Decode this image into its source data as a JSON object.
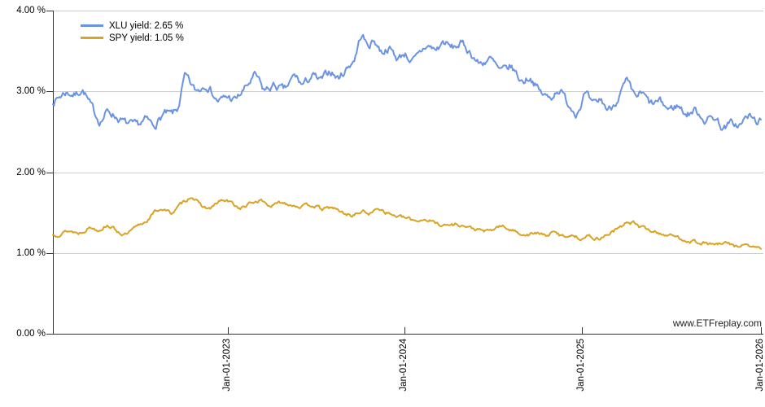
{
  "page": {
    "background": "#ffffff"
  },
  "legend": {
    "items": [
      {
        "id": "xlu",
        "label": "XLU yield: 2.65 %",
        "color": "#6b93e3"
      },
      {
        "id": "spy",
        "label": "SPY yield: 1.05 %",
        "color": "#d9a326"
      }
    ]
  },
  "watermark": {
    "text": "www.ETFreplay.com"
  },
  "chart_data": {
    "type": "line",
    "title": "",
    "xlabel": "",
    "ylabel": "",
    "y_unit": "%",
    "ylim": [
      0,
      4
    ],
    "x_domain": [
      "Jan-01-2022",
      "Jan-01-2026"
    ],
    "grid": "horizontal",
    "legend_position": "top-left",
    "axis_color": "#333333",
    "grid_color": "#cccccc",
    "yticks": [
      {
        "label": "0.00 %",
        "value": 0
      },
      {
        "label": "1.00 %",
        "value": 1
      },
      {
        "label": "2.00 %",
        "value": 2
      },
      {
        "label": "3.00 %",
        "value": 3
      },
      {
        "label": "4.00 %",
        "value": 4
      }
    ],
    "xticks": [
      {
        "label": "Jan-01-2023",
        "pos": 0.2471
      },
      {
        "label": "Jan-01-2024",
        "pos": 0.4966
      },
      {
        "label": "Jan-01-2025",
        "pos": 0.7471
      },
      {
        "label": "Jan-01-2026",
        "pos": 1.0
      }
    ],
    "series": [
      {
        "name": "XLU yield",
        "last_value": 2.65,
        "color": "#6b93e3",
        "stroke_width": 2,
        "seed": 7,
        "jitter": 0.08,
        "points": [
          [
            0,
            2.88
          ],
          [
            0.015,
            3.0
          ],
          [
            0.03,
            2.95
          ],
          [
            0.04,
            3.05
          ],
          [
            0.05,
            2.82
          ],
          [
            0.065,
            2.6
          ],
          [
            0.075,
            2.78
          ],
          [
            0.09,
            2.66
          ],
          [
            0.1,
            2.6
          ],
          [
            0.115,
            2.56
          ],
          [
            0.13,
            2.66
          ],
          [
            0.14,
            2.56
          ],
          [
            0.155,
            2.74
          ],
          [
            0.165,
            2.7
          ],
          [
            0.175,
            2.78
          ],
          [
            0.185,
            3.28
          ],
          [
            0.19,
            3.1
          ],
          [
            0.2,
            2.98
          ],
          [
            0.215,
            3.12
          ],
          [
            0.23,
            2.86
          ],
          [
            0.245,
            2.94
          ],
          [
            0.255,
            2.88
          ],
          [
            0.27,
            3.05
          ],
          [
            0.285,
            3.22
          ],
          [
            0.295,
            2.98
          ],
          [
            0.31,
            3.08
          ],
          [
            0.325,
            3.0
          ],
          [
            0.34,
            3.22
          ],
          [
            0.35,
            3.05
          ],
          [
            0.365,
            3.22
          ],
          [
            0.375,
            3.1
          ],
          [
            0.39,
            3.28
          ],
          [
            0.4,
            3.14
          ],
          [
            0.415,
            3.32
          ],
          [
            0.425,
            3.42
          ],
          [
            0.434,
            3.78
          ],
          [
            0.442,
            3.52
          ],
          [
            0.452,
            3.66
          ],
          [
            0.462,
            3.46
          ],
          [
            0.472,
            3.56
          ],
          [
            0.485,
            3.38
          ],
          [
            0.495,
            3.5
          ],
          [
            0.505,
            3.34
          ],
          [
            0.515,
            3.45
          ],
          [
            0.525,
            3.58
          ],
          [
            0.54,
            3.5
          ],
          [
            0.55,
            3.64
          ],
          [
            0.56,
            3.52
          ],
          [
            0.575,
            3.6
          ],
          [
            0.59,
            3.45
          ],
          [
            0.6,
            3.32
          ],
          [
            0.615,
            3.42
          ],
          [
            0.63,
            3.22
          ],
          [
            0.645,
            3.32
          ],
          [
            0.66,
            3.1
          ],
          [
            0.672,
            3.2
          ],
          [
            0.685,
            2.98
          ],
          [
            0.7,
            2.9
          ],
          [
            0.712,
            3.06
          ],
          [
            0.725,
            2.84
          ],
          [
            0.738,
            2.72
          ],
          [
            0.75,
            3.02
          ],
          [
            0.76,
            2.78
          ],
          [
            0.772,
            2.92
          ],
          [
            0.782,
            2.74
          ],
          [
            0.795,
            2.92
          ],
          [
            0.809,
            3.15
          ],
          [
            0.818,
            2.9
          ],
          [
            0.83,
            2.98
          ],
          [
            0.842,
            2.82
          ],
          [
            0.855,
            2.88
          ],
          [
            0.868,
            2.76
          ],
          [
            0.88,
            2.84
          ],
          [
            0.893,
            2.7
          ],
          [
            0.905,
            2.78
          ],
          [
            0.92,
            2.63
          ],
          [
            0.932,
            2.7
          ],
          [
            0.945,
            2.52
          ],
          [
            0.957,
            2.62
          ],
          [
            0.968,
            2.56
          ],
          [
            0.98,
            2.72
          ],
          [
            0.99,
            2.62
          ],
          [
            1,
            2.65
          ]
        ]
      },
      {
        "name": "SPY yield",
        "last_value": 1.05,
        "color": "#d9a326",
        "stroke_width": 2,
        "seed": 13,
        "jitter": 0.035,
        "points": [
          [
            0,
            1.22
          ],
          [
            0.02,
            1.28
          ],
          [
            0.035,
            1.24
          ],
          [
            0.05,
            1.33
          ],
          [
            0.062,
            1.28
          ],
          [
            0.075,
            1.36
          ],
          [
            0.088,
            1.27
          ],
          [
            0.1,
            1.21
          ],
          [
            0.115,
            1.32
          ],
          [
            0.13,
            1.4
          ],
          [
            0.142,
            1.52
          ],
          [
            0.152,
            1.56
          ],
          [
            0.165,
            1.48
          ],
          [
            0.18,
            1.62
          ],
          [
            0.195,
            1.72
          ],
          [
            0.205,
            1.58
          ],
          [
            0.22,
            1.54
          ],
          [
            0.235,
            1.66
          ],
          [
            0.25,
            1.62
          ],
          [
            0.262,
            1.54
          ],
          [
            0.278,
            1.62
          ],
          [
            0.292,
            1.66
          ],
          [
            0.305,
            1.57
          ],
          [
            0.32,
            1.63
          ],
          [
            0.335,
            1.6
          ],
          [
            0.35,
            1.57
          ],
          [
            0.365,
            1.6
          ],
          [
            0.378,
            1.53
          ],
          [
            0.392,
            1.57
          ],
          [
            0.405,
            1.5
          ],
          [
            0.42,
            1.46
          ],
          [
            0.435,
            1.52
          ],
          [
            0.448,
            1.48
          ],
          [
            0.458,
            1.58
          ],
          [
            0.468,
            1.5
          ],
          [
            0.48,
            1.46
          ],
          [
            0.495,
            1.43
          ],
          [
            0.51,
            1.4
          ],
          [
            0.525,
            1.42
          ],
          [
            0.54,
            1.36
          ],
          [
            0.555,
            1.34
          ],
          [
            0.57,
            1.36
          ],
          [
            0.585,
            1.31
          ],
          [
            0.6,
            1.28
          ],
          [
            0.615,
            1.26
          ],
          [
            0.628,
            1.34
          ],
          [
            0.64,
            1.3
          ],
          [
            0.655,
            1.25
          ],
          [
            0.668,
            1.22
          ],
          [
            0.68,
            1.25
          ],
          [
            0.693,
            1.21
          ],
          [
            0.705,
            1.26
          ],
          [
            0.718,
            1.2
          ],
          [
            0.73,
            1.23
          ],
          [
            0.742,
            1.18
          ],
          [
            0.755,
            1.21
          ],
          [
            0.768,
            1.17
          ],
          [
            0.78,
            1.23
          ],
          [
            0.793,
            1.29
          ],
          [
            0.803,
            1.33
          ],
          [
            0.808,
            1.44
          ],
          [
            0.813,
            1.33
          ],
          [
            0.818,
            1.4
          ],
          [
            0.825,
            1.32
          ],
          [
            0.838,
            1.29
          ],
          [
            0.852,
            1.25
          ],
          [
            0.865,
            1.22
          ],
          [
            0.878,
            1.2
          ],
          [
            0.89,
            1.16
          ],
          [
            0.905,
            1.14
          ],
          [
            0.92,
            1.12
          ],
          [
            0.935,
            1.1
          ],
          [
            0.95,
            1.12
          ],
          [
            0.962,
            1.08
          ],
          [
            0.975,
            1.1
          ],
          [
            0.988,
            1.07
          ],
          [
            1,
            1.05
          ]
        ]
      }
    ]
  }
}
